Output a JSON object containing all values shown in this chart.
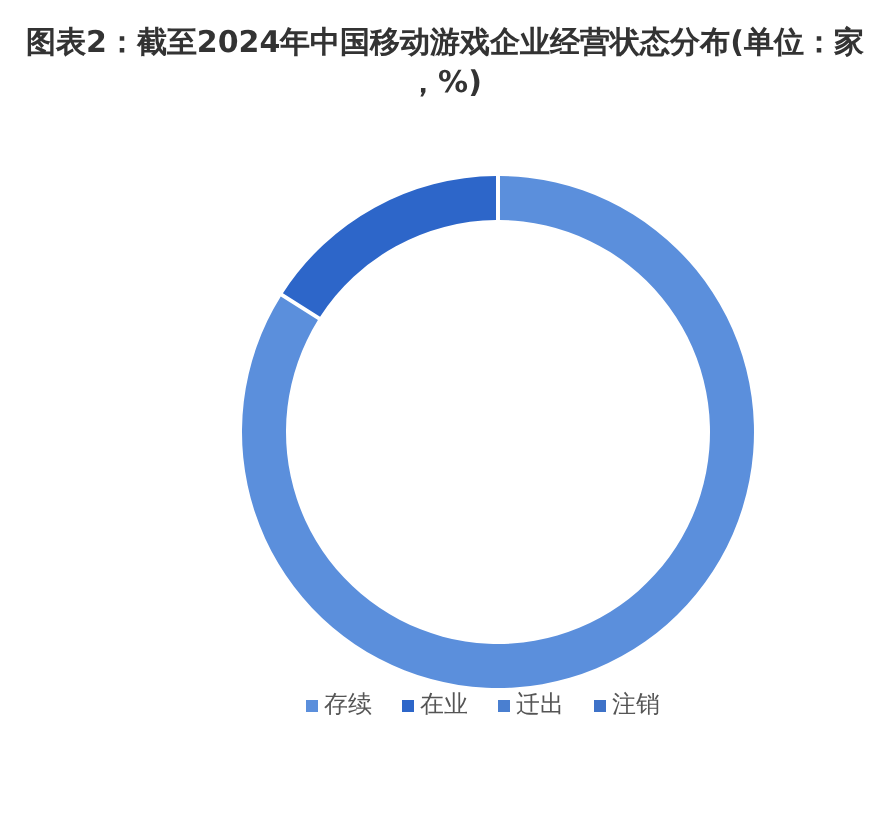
{
  "chart_data": {
    "type": "donut",
    "title": "图表2：截至2024年中国移动游戏企业经营状态分布(单位：家，%)",
    "categories": [
      "存续",
      "在业",
      "迁出",
      "注销"
    ],
    "values": [
      84,
      16,
      0,
      0
    ],
    "colors": [
      "#5b8fdc",
      "#2d66c9",
      "#4a7fd0",
      "#3e72c8"
    ],
    "legend": "bottom"
  }
}
